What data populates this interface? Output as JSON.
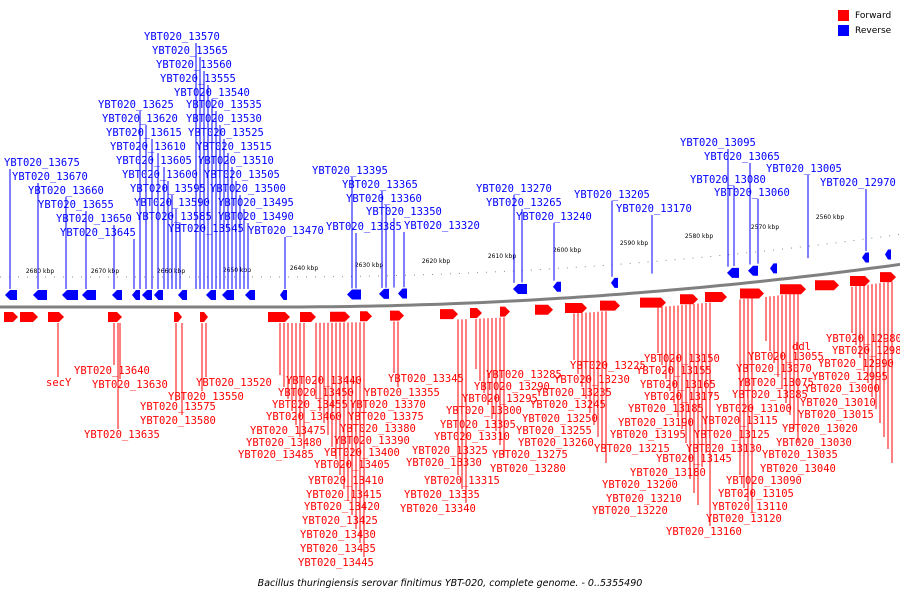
{
  "caption": "Bacillus thuringiensis serovar finitimus YBT-020, complete genome. - 0..5355490",
  "legend": [
    {
      "label": "Forward",
      "color": "#ff0000"
    },
    {
      "label": "Reverse",
      "color": "#0000ff"
    }
  ],
  "colors": {
    "forward": "#ff0000",
    "reverse": "#0000ff",
    "backbone": "#808080"
  },
  "scale_labels": [
    "2680 kbp",
    "2670 kbp",
    "2660 kbp",
    "2650 kbp",
    "2640 kbp",
    "2630 kbp",
    "2620 kbp",
    "2610 kbp",
    "2600 kbp",
    "2590 kbp",
    "2580 kbp",
    "2570 kbp",
    "2560 kbp"
  ],
  "reverse_genes": [
    "YBT020_13675",
    "YBT020_13670",
    "YBT020_13660",
    "YBT020_13655",
    "YBT020_13650",
    "YBT020_13645",
    "YBT020_13625",
    "YBT020_13620",
    "YBT020_13615",
    "YBT020_13610",
    "YBT020_13605",
    "YBT020_13600",
    "YBT020_13595",
    "YBT020_13590",
    "YBT020_13585",
    "YBT020_13570",
    "YBT020_13565",
    "YBT020_13560",
    "YBT020_13555",
    "YBT020_13540",
    "YBT020_13535",
    "YBT020_13530",
    "YBT020_13525",
    "YBT020_13515",
    "YBT020_13510",
    "YBT020_13505",
    "YBT020_13500",
    "YBT020_13495",
    "YBT020_13490",
    "YBT020_13545",
    "YBT020_13470",
    "YBT020_13395",
    "YBT020_13365",
    "YBT020_13360",
    "YBT020_13350",
    "YBT020_13385",
    "YBT020_13320",
    "YBT020_13270",
    "YBT020_13265",
    "YBT020_13240",
    "YBT020_13205",
    "YBT020_13170",
    "YBT020_13095",
    "YBT020_13065",
    "YBT020_13080",
    "YBT020_13060",
    "YBT020_13005",
    "YBT020_12970"
  ],
  "forward_genes": [
    "secY",
    "YBT020_13640",
    "YBT020_13630",
    "YBT020_13635",
    "YBT020_13575",
    "YBT020_13580",
    "YBT020_13550",
    "YBT020_13520",
    "YBT020_13440",
    "YBT020_13450",
    "YBT020_13455",
    "YBT020_13460",
    "YBT020_13475",
    "YBT020_13480",
    "YBT020_13485",
    "YBT020_13370",
    "YBT020_13375",
    "YBT020_13380",
    "YBT020_13390",
    "YBT020_13400",
    "YBT020_13405",
    "YBT020_13410",
    "YBT020_13415",
    "YBT020_13420",
    "YBT020_13425",
    "YBT020_13430",
    "YBT020_13435",
    "YBT020_13445",
    "YBT020_13345",
    "YBT020_13355",
    "YBT020_13285",
    "YBT020_13290",
    "YBT020_13295",
    "YBT020_13300",
    "YBT020_13305",
    "YBT020_13310",
    "YBT020_13325",
    "YBT020_13330",
    "YBT020_13315",
    "YBT020_13335",
    "YBT020_13340",
    "YBT020_13225",
    "YBT020_13230",
    "YBT020_13235",
    "YBT020_13245",
    "YBT020_13250",
    "YBT020_13255",
    "YBT020_13260",
    "YBT020_13275",
    "YBT020_13280",
    "YBT020_13150",
    "YBT020_13155",
    "YBT020_13165",
    "YBT020_13175",
    "YBT020_13185",
    "YBT020_13190",
    "YBT020_13195",
    "YBT020_13215",
    "YBT020_13200",
    "YBT020_13210",
    "YBT020_13220",
    "YBT020_13180",
    "YBT020_13145",
    "YBT020_13160",
    "ddl",
    "YBT020_13055",
    "YBT020_13070",
    "YBT020_13075",
    "YBT020_13085",
    "YBT020_13100",
    "YBT020_13115",
    "YBT020_13125",
    "YBT020_13130",
    "YBT020_13090",
    "YBT020_13105",
    "YBT020_13110",
    "YBT020_13120",
    "YBT020_12980",
    "YBT020_12985",
    "YBT020_12990",
    "YBT020_12995",
    "YBT020_13000",
    "YBT020_13010",
    "YBT020_13015",
    "YBT020_13020",
    "YBT020_13030",
    "YBT020_13035",
    "YBT020_13040"
  ]
}
